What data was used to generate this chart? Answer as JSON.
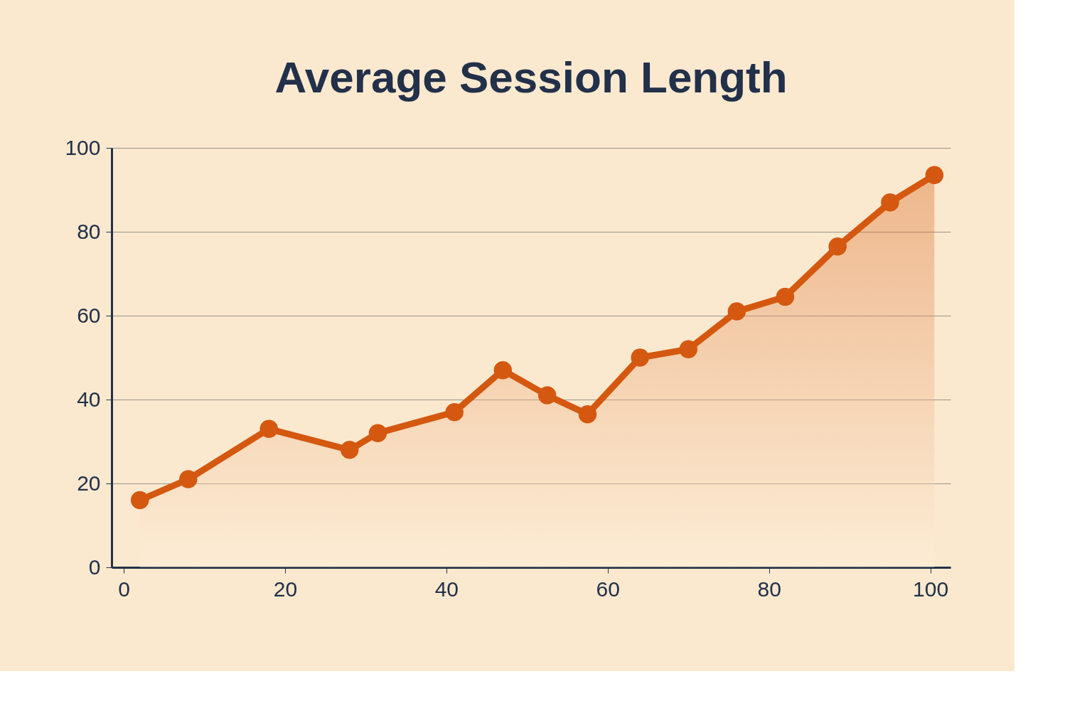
{
  "chart_data": {
    "type": "area",
    "title": "Average Session Length",
    "x": [
      2,
      8,
      18,
      28,
      31.5,
      41,
      47,
      52.5,
      57.5,
      64,
      70,
      76,
      82,
      88.5,
      95,
      100.5
    ],
    "series": [
      {
        "color": "#d4580f",
        "values": [
          16,
          21,
          33,
          28,
          32,
          37,
          47,
          41,
          36.5,
          50,
          52,
          61,
          64.5,
          76.5,
          87,
          93.5
        ]
      }
    ],
    "xlim": [
      -1.5,
      102.5
    ],
    "ylim": [
      0,
      100
    ],
    "xticks": [
      0,
      20,
      40,
      60,
      80,
      100
    ],
    "yticks": [
      0,
      20,
      40,
      60,
      80,
      100
    ],
    "grid": "y",
    "marker": "circle",
    "line_style": "solid"
  }
}
